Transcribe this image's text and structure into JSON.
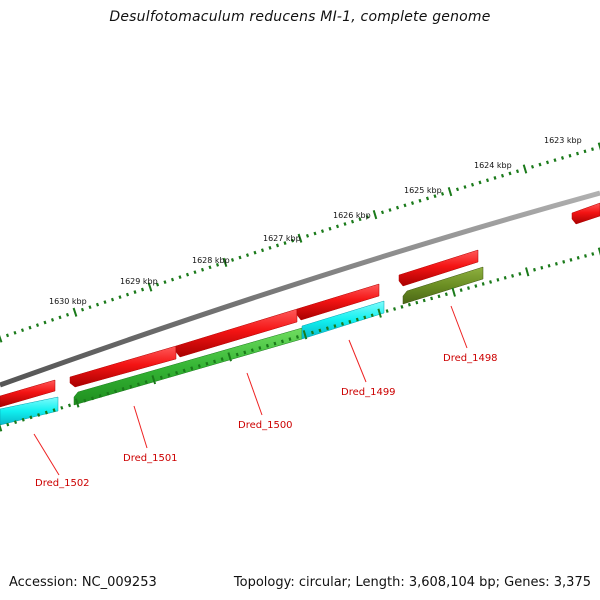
{
  "title": "Desulfotomaculum reducens MI-1, complete genome",
  "footer": {
    "accession": "Accession: NC_009253",
    "topology": "Topology: circular; Length: 3,608,104 bp; Genes: 3,375"
  },
  "colors": {
    "backbone": "#7f7f7f",
    "forward_gene": "#ee1111",
    "reverse_gene_cyan": "#11f0f0",
    "reverse_gene_green": "#33bb33",
    "reverse_gene_olive": "#6b8e23",
    "ticks": "#1a7a1a",
    "gene_label": "#cc0000",
    "callout_line": "#ee2222"
  },
  "scale_labels": [
    "1623 kbp",
    "1624 kbp",
    "1625 kbp",
    "1626 kbp",
    "1627 kbp",
    "1628 kbp",
    "1629 kbp",
    "1630 kbp"
  ],
  "gene_labels": [
    "Dred_1498",
    "Dred_1499",
    "Dred_1500",
    "Dred_1501",
    "Dred_1502"
  ]
}
